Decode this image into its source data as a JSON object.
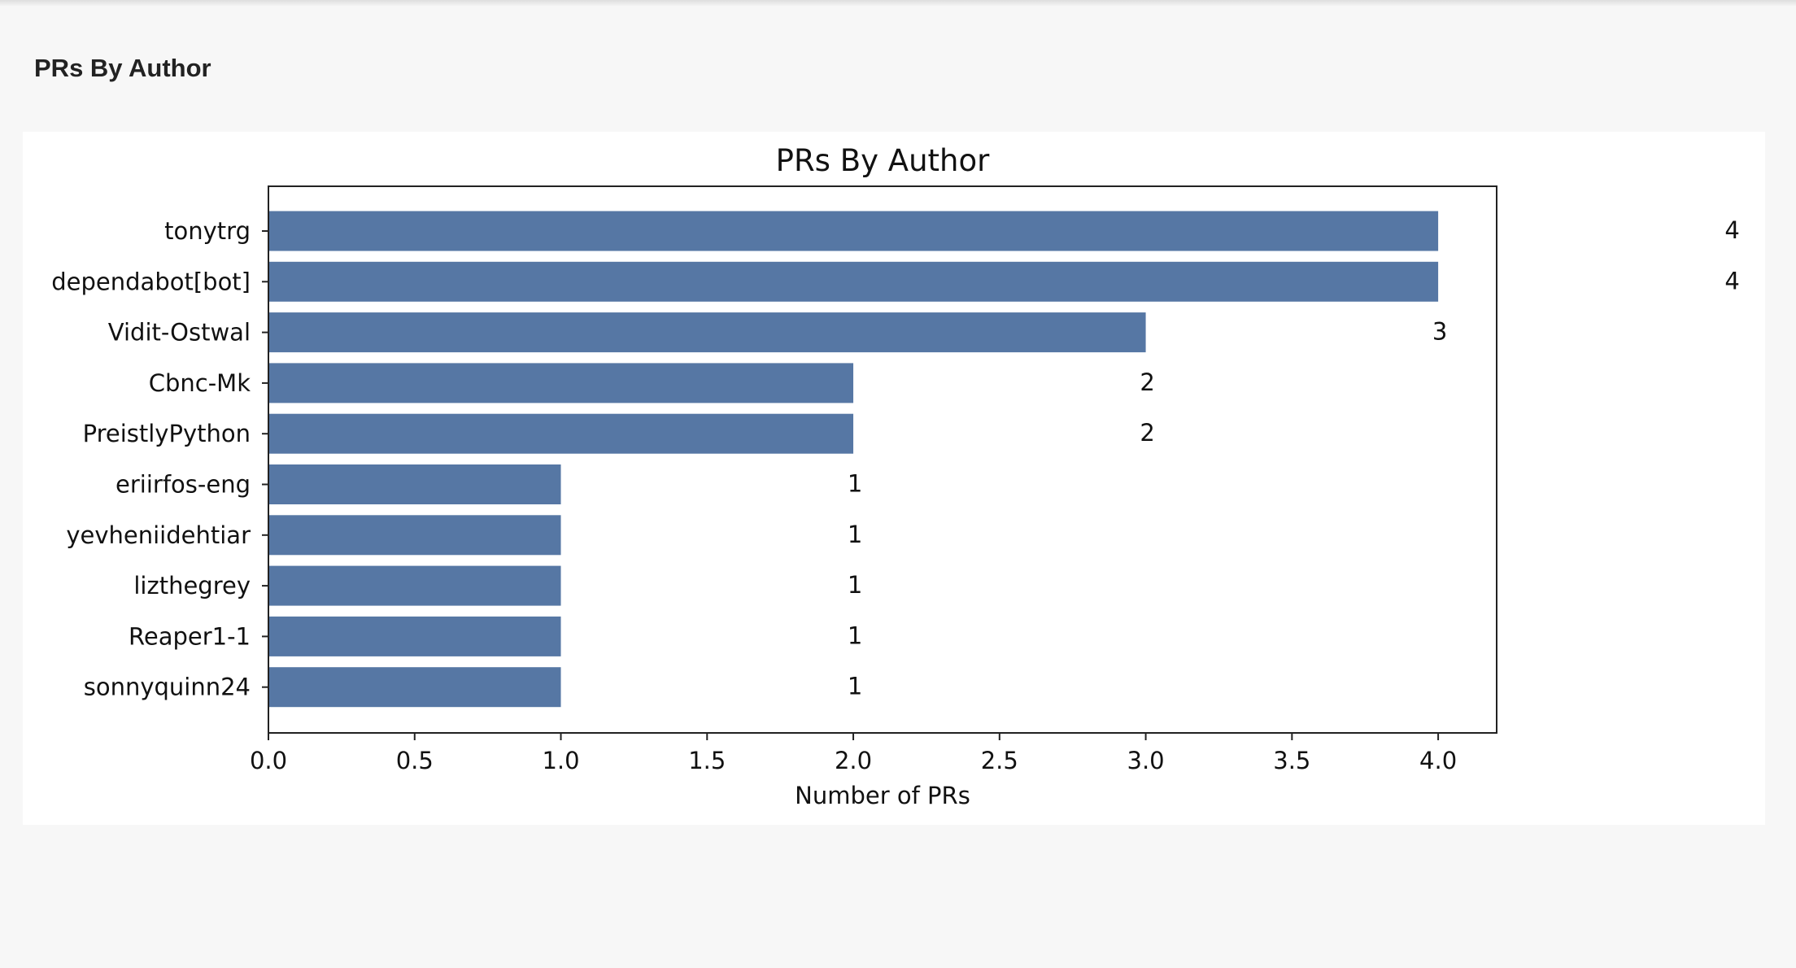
{
  "page": {
    "heading": "PRs By Author"
  },
  "colors": {
    "bar": "#5677a4",
    "axis": "#222222",
    "text": "#111111"
  },
  "chart_data": {
    "type": "bar",
    "orientation": "horizontal",
    "title": "PRs By Author",
    "xlabel": "Number of PRs",
    "ylabel": "",
    "categories": [
      "tonytrg",
      "dependabot[bot]",
      "Vidit-Ostwal",
      "Cbnc-Mk",
      "PreistlyPython",
      "eriirfos-eng",
      "yevheniidehtiar",
      "lizthegrey",
      "Reaper1-1",
      "sonnyquinn24"
    ],
    "values": [
      4,
      4,
      3,
      2,
      2,
      1,
      1,
      1,
      1,
      1
    ],
    "value_labels": [
      "4",
      "4",
      "3",
      "2",
      "2",
      "1",
      "1",
      "1",
      "1",
      "1"
    ],
    "xlim": [
      0,
      4.2
    ],
    "xticks": [
      "0.0",
      "0.5",
      "1.0",
      "1.5",
      "2.0",
      "2.5",
      "3.0",
      "3.5",
      "4.0"
    ],
    "grid": false,
    "legend": false
  }
}
